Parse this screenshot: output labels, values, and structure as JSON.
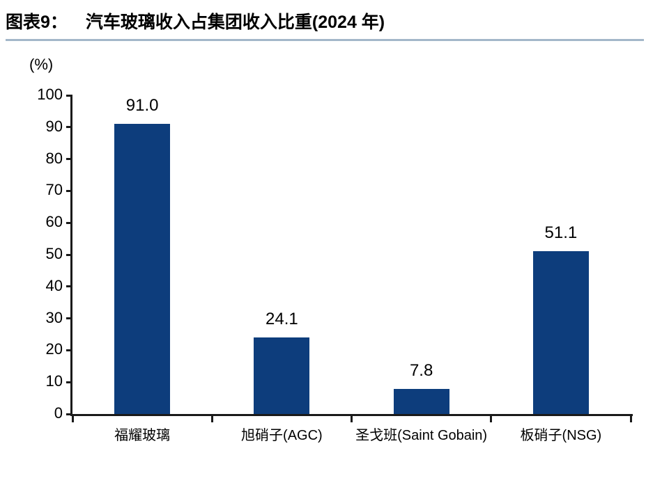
{
  "header": {
    "figure_label": "图表9：",
    "title": "汽车玻璃收入占集团收入比重(2024 年)"
  },
  "colors": {
    "bar": "#0D3D7C",
    "title_underline": "#A3B7C9",
    "axis": "#1a1a1a",
    "text": "#000000"
  },
  "chart_data": {
    "type": "bar",
    "title": "汽车玻璃收入占集团收入比重(2024 年)",
    "unit_label": "(%)",
    "categories": [
      "福耀玻璃",
      "旭硝子(AGC)",
      "圣戈班(Saint Gobain)",
      "板硝子(NSG)"
    ],
    "values": [
      91.0,
      24.1,
      7.8,
      51.1
    ],
    "value_labels": [
      "91.0",
      "24.1",
      "7.8",
      "51.1"
    ],
    "xlabel": "",
    "ylabel": "(%)",
    "ylim": [
      0,
      100
    ],
    "ytick_step": 10,
    "grid": false,
    "legend_position": "none",
    "bar_color": "#0D3D7C"
  }
}
